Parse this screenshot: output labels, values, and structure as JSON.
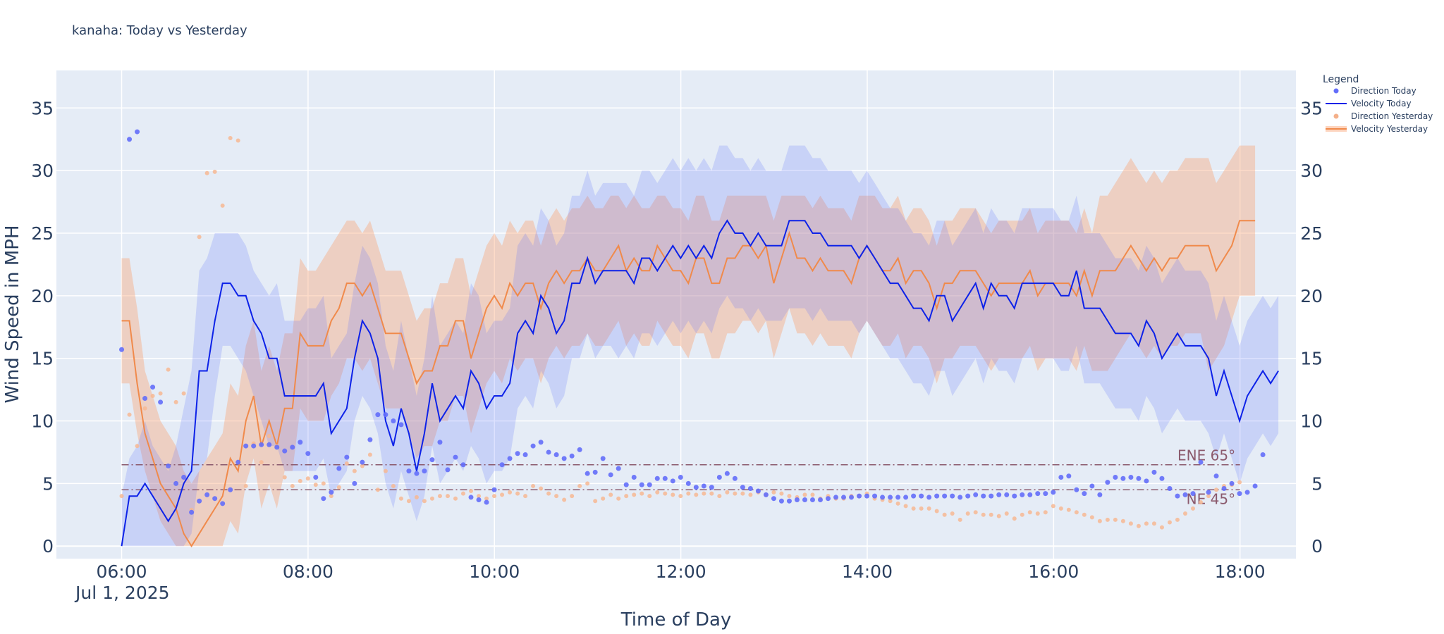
{
  "chart_data": {
    "type": "line",
    "title": "kanaha: Today vs Yesterday",
    "xlabel": "Time of Day",
    "ylabel": "Wind Speed in MPH",
    "date_label": "Jul 1, 2025",
    "x_unit": "hours",
    "xlim": [
      5.3,
      18.6
    ],
    "ylim": [
      -1,
      38
    ],
    "x_ticks": [
      {
        "value": 6,
        "label": "06:00"
      },
      {
        "value": 8,
        "label": "08:00"
      },
      {
        "value": 10,
        "label": "10:00"
      },
      {
        "value": 12,
        "label": "12:00"
      },
      {
        "value": 14,
        "label": "14:00"
      },
      {
        "value": 16,
        "label": "16:00"
      },
      {
        "value": 18,
        "label": "18:00"
      }
    ],
    "y_ticks": [
      0,
      5,
      10,
      15,
      20,
      25,
      30,
      35
    ],
    "legend": {
      "title": "Legend",
      "position": "top-right",
      "items": [
        {
          "label": "Direction Today",
          "kind": "marker",
          "color": "#636efa"
        },
        {
          "label": "Velocity Today",
          "kind": "line",
          "color": "#0d22e8"
        },
        {
          "label": "Direction Yesterday",
          "kind": "marker",
          "color": "#f4b08a"
        },
        {
          "label": "Velocity Yesterday",
          "kind": "band",
          "color": "#f08a4b"
        }
      ]
    },
    "colors": {
      "today_line": "#0d22e8",
      "today_band": "rgba(99,120,250,0.22)",
      "today_dots": "#636efa",
      "yesterday_line": "#f08a4b",
      "yesterday_band": "rgba(250,160,110,0.38)",
      "yesterday_dots": "#f7b993",
      "reference": "#8b5a6d"
    },
    "reference_lines": [
      {
        "label": "ENE 65°",
        "y": 6.5
      },
      {
        "label": "NE 45°",
        "y": 4.5
      }
    ],
    "series": [
      {
        "name": "Velocity Today",
        "x_start": 6.0,
        "x_step": 0.0833,
        "values": [
          0,
          4,
          4,
          5,
          4,
          3,
          2,
          3,
          5,
          6,
          14,
          14,
          18,
          21,
          21,
          20,
          20,
          18,
          17,
          15,
          15,
          12,
          12,
          12,
          12,
          12,
          13,
          9,
          10,
          11,
          15,
          18,
          17,
          15,
          10,
          8,
          11,
          9,
          6,
          9,
          13,
          10,
          11,
          12,
          11,
          14,
          13,
          11,
          12,
          12,
          13,
          17,
          18,
          17,
          20,
          19,
          17,
          18,
          21,
          21,
          23,
          21,
          22,
          22,
          22,
          22,
          21,
          23,
          23,
          22,
          23,
          24,
          23,
          24,
          23,
          24,
          23,
          25,
          26,
          25,
          25,
          24,
          25,
          24,
          24,
          24,
          26,
          26,
          26,
          25,
          25,
          24,
          24,
          24,
          24,
          23,
          24,
          23,
          22,
          21,
          21,
          20,
          19,
          19,
          18,
          20,
          20,
          18,
          19,
          20,
          21,
          19,
          21,
          20,
          20,
          19,
          21,
          21,
          21,
          21,
          21,
          20,
          20,
          22,
          19,
          19,
          19,
          18,
          17,
          17,
          17,
          16,
          18,
          17,
          15,
          16,
          17,
          16,
          16,
          16,
          15,
          12,
          14,
          12,
          10,
          12,
          13,
          14,
          13,
          14
        ],
        "band_low": [
          0,
          0,
          0,
          0,
          0,
          0,
          0,
          0,
          0,
          1,
          6,
          7,
          12,
          16,
          16,
          15,
          14,
          12,
          10,
          8,
          8,
          6,
          6,
          6,
          6,
          6,
          7,
          4,
          5,
          6,
          10,
          12,
          11,
          9,
          5,
          3,
          6,
          4,
          2,
          4,
          8,
          5,
          6,
          7,
          6,
          8,
          7,
          5,
          6,
          6,
          7,
          11,
          12,
          11,
          14,
          13,
          11,
          12,
          15,
          15,
          17,
          15,
          16,
          16,
          15,
          16,
          15,
          17,
          17,
          16,
          17,
          18,
          17,
          18,
          17,
          18,
          17,
          19,
          20,
          19,
          19,
          18,
          19,
          18,
          18,
          18,
          19,
          19,
          19,
          18,
          19,
          18,
          18,
          18,
          18,
          17,
          18,
          17,
          16,
          15,
          15,
          14,
          13,
          13,
          12,
          14,
          14,
          12,
          13,
          14,
          15,
          13,
          15,
          14,
          14,
          13,
          15,
          15,
          15,
          15,
          15,
          14,
          14,
          16,
          13,
          13,
          13,
          12,
          11,
          11,
          11,
          10,
          12,
          11,
          9,
          10,
          11,
          10,
          10,
          10,
          9,
          7,
          9,
          7,
          5,
          7,
          8,
          9,
          8,
          9
        ],
        "band_high": [
          4,
          7,
          8,
          10,
          8,
          7,
          6,
          8,
          11,
          14,
          22,
          23,
          25,
          25,
          25,
          25,
          24,
          22,
          21,
          20,
          21,
          18,
          18,
          18,
          19,
          19,
          20,
          15,
          16,
          17,
          21,
          24,
          23,
          21,
          16,
          14,
          18,
          15,
          12,
          15,
          20,
          16,
          17,
          18,
          17,
          21,
          20,
          17,
          18,
          18,
          19,
          24,
          25,
          24,
          27,
          26,
          24,
          25,
          28,
          28,
          30,
          28,
          29,
          29,
          29,
          29,
          28,
          30,
          30,
          29,
          30,
          31,
          30,
          31,
          30,
          31,
          30,
          32,
          32,
          31,
          31,
          30,
          31,
          30,
          30,
          30,
          32,
          32,
          32,
          31,
          31,
          30,
          30,
          30,
          30,
          29,
          30,
          29,
          28,
          27,
          27,
          26,
          25,
          25,
          24,
          26,
          26,
          24,
          25,
          26,
          27,
          25,
          27,
          26,
          26,
          25,
          27,
          27,
          27,
          27,
          27,
          26,
          26,
          28,
          25,
          25,
          25,
          24,
          23,
          23,
          23,
          22,
          24,
          23,
          21,
          22,
          23,
          22,
          22,
          22,
          21,
          18,
          20,
          18,
          16,
          18,
          19,
          20,
          19,
          20
        ]
      },
      {
        "name": "Velocity Yesterday",
        "x_start": 6.0,
        "x_step": 0.0833,
        "values": [
          18,
          18,
          13,
          9,
          7,
          5,
          4,
          3,
          1,
          0,
          1,
          2,
          3,
          4,
          7,
          6,
          10,
          12,
          8,
          10,
          8,
          11,
          11,
          17,
          16,
          16,
          16,
          18,
          19,
          21,
          21,
          20,
          21,
          19,
          17,
          17,
          17,
          15,
          13,
          14,
          14,
          16,
          16,
          18,
          18,
          15,
          17,
          19,
          20,
          19,
          21,
          20,
          21,
          21,
          19,
          21,
          22,
          21,
          22,
          22,
          23,
          22,
          22,
          23,
          24,
          22,
          23,
          22,
          22,
          24,
          23,
          22,
          22,
          21,
          23,
          23,
          21,
          21,
          23,
          23,
          24,
          24,
          23,
          24,
          21,
          23,
          25,
          23,
          23,
          22,
          23,
          22,
          22,
          22,
          21,
          23,
          24,
          23,
          22,
          22,
          23,
          21,
          22,
          22,
          21,
          19,
          21,
          21,
          22,
          22,
          22,
          21,
          20,
          21,
          21,
          21,
          21,
          22,
          20,
          21,
          21,
          21,
          21,
          20,
          22,
          20,
          22,
          22,
          22,
          23,
          24,
          23,
          22,
          23,
          22,
          23,
          23,
          24,
          24,
          24,
          24,
          22,
          23,
          24,
          26,
          26,
          26
        ],
        "band_low": [
          13,
          13,
          9,
          6,
          4,
          2,
          1,
          0,
          0,
          0,
          0,
          0,
          0,
          0,
          2,
          1,
          5,
          7,
          3,
          5,
          3,
          6,
          6,
          11,
          10,
          10,
          10,
          12,
          13,
          15,
          15,
          14,
          15,
          13,
          11,
          11,
          11,
          9,
          7,
          8,
          8,
          10,
          10,
          12,
          12,
          9,
          11,
          13,
          14,
          13,
          15,
          14,
          15,
          15,
          13,
          15,
          16,
          15,
          16,
          16,
          17,
          16,
          16,
          17,
          18,
          16,
          17,
          16,
          16,
          18,
          17,
          16,
          16,
          15,
          17,
          17,
          15,
          15,
          17,
          17,
          18,
          18,
          17,
          18,
          15,
          17,
          19,
          17,
          17,
          16,
          17,
          16,
          16,
          16,
          15,
          17,
          18,
          17,
          16,
          16,
          17,
          15,
          16,
          16,
          15,
          13,
          15,
          15,
          16,
          16,
          16,
          15,
          14,
          15,
          15,
          15,
          15,
          16,
          14,
          15,
          15,
          15,
          15,
          14,
          16,
          14,
          14,
          14,
          15,
          16,
          17,
          16,
          15,
          16,
          15,
          16,
          16,
          17,
          17,
          17,
          14,
          15,
          16,
          18,
          20,
          20,
          20
        ],
        "band_high": [
          23,
          23,
          19,
          14,
          12,
          10,
          9,
          8,
          6,
          5,
          6,
          7,
          8,
          9,
          13,
          12,
          16,
          18,
          14,
          16,
          14,
          17,
          17,
          23,
          22,
          22,
          23,
          24,
          25,
          26,
          26,
          25,
          26,
          24,
          22,
          22,
          22,
          20,
          18,
          19,
          19,
          21,
          21,
          23,
          23,
          20,
          22,
          24,
          25,
          24,
          26,
          25,
          26,
          26,
          24,
          26,
          27,
          26,
          27,
          27,
          28,
          27,
          27,
          28,
          28,
          27,
          28,
          27,
          27,
          28,
          28,
          27,
          27,
          26,
          28,
          28,
          26,
          26,
          28,
          28,
          28,
          28,
          28,
          28,
          26,
          28,
          28,
          28,
          28,
          27,
          28,
          27,
          27,
          27,
          26,
          28,
          28,
          28,
          27,
          27,
          28,
          26,
          27,
          27,
          26,
          24,
          26,
          26,
          27,
          27,
          27,
          26,
          25,
          26,
          26,
          26,
          26,
          27,
          25,
          26,
          26,
          26,
          26,
          25,
          27,
          25,
          28,
          28,
          29,
          30,
          31,
          30,
          29,
          30,
          29,
          30,
          30,
          31,
          31,
          31,
          31,
          29,
          30,
          31,
          32,
          32,
          32
        ]
      },
      {
        "name": "Direction Today",
        "kind": "scatter",
        "x_start": 6.0,
        "x_step": 0.0833,
        "values": [
          15.7,
          32.5,
          33.1,
          11.8,
          12.7,
          11.5,
          6.4,
          5.0,
          5.5,
          2.7,
          3.6,
          4.1,
          3.8,
          3.4,
          4.5,
          6.7,
          8.0,
          8.0,
          8.1,
          8.1,
          7.9,
          7.6,
          7.9,
          8.3,
          7.4,
          5.5,
          3.8,
          4.3,
          6.2,
          7.1,
          5.0,
          6.7,
          8.5,
          10.5,
          10.5,
          10.0,
          9.7,
          6.0,
          5.8,
          6.0,
          6.9,
          8.3,
          6.1,
          7.1,
          6.5,
          3.9,
          3.7,
          3.5,
          4.5,
          6.5,
          7.0,
          7.4,
          7.3,
          8.0,
          8.3,
          7.5,
          7.3,
          7.0,
          7.2,
          7.7,
          5.8,
          5.9,
          7.0,
          5.7,
          6.2,
          4.9,
          5.5,
          4.9,
          4.9,
          5.4,
          5.4,
          5.2,
          5.5,
          5.0,
          4.7,
          4.8,
          4.7,
          5.5,
          5.8,
          5.4,
          4.7,
          4.6,
          4.4,
          4.1,
          3.8,
          3.6,
          3.6,
          3.7,
          3.7,
          3.7,
          3.7,
          3.8,
          3.9,
          3.9,
          3.9,
          4.0,
          4.0,
          4.0,
          3.9,
          3.9,
          3.9,
          3.9,
          4.0,
          4.0,
          3.9,
          4.0,
          4.0,
          4.0,
          3.9,
          4.0,
          4.1,
          4.0,
          4.0,
          4.1,
          4.1,
          4.0,
          4.1,
          4.1,
          4.2,
          4.2,
          4.3,
          5.5,
          5.6,
          4.5,
          4.2,
          4.8,
          4.1,
          5.1,
          5.5,
          5.4,
          5.5,
          5.4,
          5.2,
          5.9,
          5.4,
          4.6,
          4.0,
          4.1,
          4.2,
          6.7,
          4.3,
          5.6,
          4.6,
          5.0,
          4.2,
          4.3,
          4.8,
          7.3
        ]
      },
      {
        "name": "Direction Yesterday",
        "kind": "scatter",
        "x_start": 6.0,
        "x_step": 0.0833,
        "values": [
          4.0,
          10.5,
          8.0,
          11.0,
          12.0,
          12.2,
          14.1,
          11.5,
          12.2,
          2.9,
          24.7,
          29.8,
          29.9,
          27.2,
          32.6,
          32.4,
          4.8,
          8.2,
          6.7,
          8.8,
          8.0,
          5.5,
          4.8,
          5.2,
          5.4,
          4.9,
          5.0,
          4.0,
          4.7,
          6.6,
          6.0,
          6.4,
          7.3,
          4.5,
          6.0,
          4.8,
          3.8,
          3.6,
          3.9,
          3.6,
          3.8,
          4.0,
          4.0,
          3.8,
          4.2,
          4.4,
          4.0,
          3.8,
          4.0,
          4.1,
          4.3,
          4.2,
          4.0,
          4.8,
          4.6,
          4.2,
          4.0,
          3.7,
          4.0,
          4.8,
          5.0,
          3.6,
          3.8,
          4.1,
          3.8,
          4.0,
          4.1,
          4.2,
          4.0,
          4.3,
          4.2,
          4.1,
          4.0,
          4.2,
          4.1,
          4.2,
          4.2,
          4.0,
          4.3,
          4.2,
          4.2,
          4.1,
          4.3,
          4.1,
          4.3,
          4.2,
          4.0,
          3.9,
          4.1,
          4.1,
          3.8,
          4.0,
          3.8,
          3.8,
          4.0,
          4.0,
          4.2,
          3.8,
          3.7,
          3.6,
          3.4,
          3.2,
          3.0,
          3.0,
          3.0,
          2.8,
          2.5,
          2.6,
          2.1,
          2.6,
          2.7,
          2.5,
          2.5,
          2.4,
          2.6,
          2.2,
          2.5,
          2.7,
          2.6,
          2.7,
          3.2,
          3.0,
          2.9,
          2.7,
          2.5,
          2.3,
          2.0,
          2.1,
          2.1,
          2.0,
          1.8,
          1.6,
          1.8,
          1.8,
          1.5,
          1.9,
          2.1,
          2.6,
          3.0,
          3.5,
          4.0,
          4.5,
          4.8,
          4.9,
          5.1
        ]
      }
    ]
  }
}
